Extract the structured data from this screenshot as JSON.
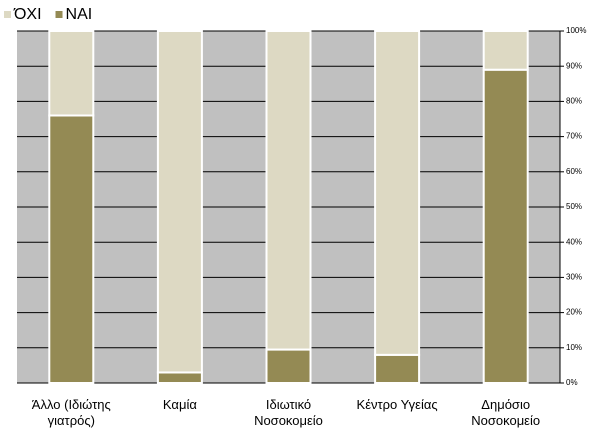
{
  "chart_data": {
    "type": "stacked_bar",
    "categories": [
      "Άλλο (Ιδιώτης\nγιατρός)",
      "Καμία",
      "Ιδιωτικό\nΝοσοκομείο",
      "Κέντρο Υγείας",
      "Δημόσιο\nΝοσοκομείο"
    ],
    "series": [
      {
        "name": "ΝΑΙ",
        "color": "#948a54",
        "values": [
          76,
          3,
          9.5,
          8,
          89
        ]
      },
      {
        "name": "ΌΧΙ",
        "color": "#ddd9c3",
        "values": [
          24,
          97,
          90.5,
          92,
          11
        ]
      }
    ],
    "ylim": [
      0,
      100
    ],
    "yticks": [
      {
        "value": 0,
        "label": "0%"
      },
      {
        "value": 10,
        "label": "10%"
      },
      {
        "value": 20,
        "label": "20%"
      },
      {
        "value": 30,
        "label": "30%"
      },
      {
        "value": 40,
        "label": "40%"
      },
      {
        "value": 50,
        "label": "50%"
      },
      {
        "value": 60,
        "label": "60%"
      },
      {
        "value": 70,
        "label": "70%"
      },
      {
        "value": 80,
        "label": "80%"
      },
      {
        "value": 90,
        "label": "90%"
      },
      {
        "value": 100,
        "label": "100%"
      }
    ],
    "grid": true
  }
}
